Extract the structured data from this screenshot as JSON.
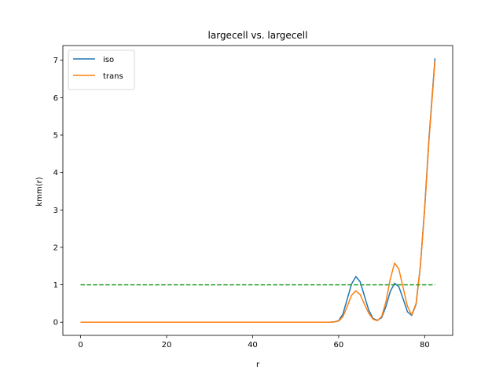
{
  "chart_data": {
    "type": "line",
    "title": "largecell vs. largecell",
    "xlabel": "r",
    "ylabel": "kmm(r)",
    "xlim": [
      -4.12,
      86.52
    ],
    "ylim": [
      -0.352,
      7.392
    ],
    "xticks": [
      0,
      20,
      40,
      60,
      80
    ],
    "yticks": [
      0,
      1,
      2,
      3,
      4,
      5,
      6,
      7
    ],
    "grid": false,
    "legend_position": "top-left",
    "series": [
      {
        "name": "iso",
        "color": "#1f77b4",
        "style": "solid",
        "x": [
          0,
          10,
          20,
          30,
          40,
          50,
          58,
          59,
          60,
          61,
          62,
          63,
          64,
          65,
          66,
          67,
          68,
          69,
          70,
          71,
          72,
          73,
          74,
          75,
          76,
          77,
          78,
          79,
          80,
          81,
          82.4
        ],
        "y": [
          0,
          0,
          0,
          0,
          0,
          0,
          0,
          0.01,
          0.04,
          0.22,
          0.62,
          1.02,
          1.22,
          1.08,
          0.7,
          0.32,
          0.1,
          0.05,
          0.12,
          0.42,
          0.82,
          1.04,
          0.95,
          0.62,
          0.28,
          0.18,
          0.48,
          1.5,
          3.05,
          4.9,
          7.05
        ]
      },
      {
        "name": "trans",
        "color": "#ff7f0e",
        "style": "solid",
        "x": [
          0,
          10,
          20,
          30,
          40,
          50,
          58,
          59,
          60,
          61,
          62,
          63,
          64,
          65,
          66,
          67,
          68,
          69,
          70,
          71,
          72,
          73,
          74,
          75,
          76,
          77,
          78,
          79,
          80,
          81,
          82.4
        ],
        "y": [
          0,
          0,
          0,
          0,
          0,
          0,
          0,
          0.01,
          0.03,
          0.15,
          0.42,
          0.72,
          0.84,
          0.74,
          0.48,
          0.24,
          0.08,
          0.04,
          0.15,
          0.55,
          1.15,
          1.58,
          1.42,
          0.92,
          0.42,
          0.2,
          0.5,
          1.5,
          3.0,
          4.85,
          6.98
        ]
      },
      {
        "name": "",
        "color": "#2ca02c",
        "style": "dashed",
        "x": [
          0,
          82.4
        ],
        "y": [
          1,
          1
        ]
      }
    ]
  }
}
